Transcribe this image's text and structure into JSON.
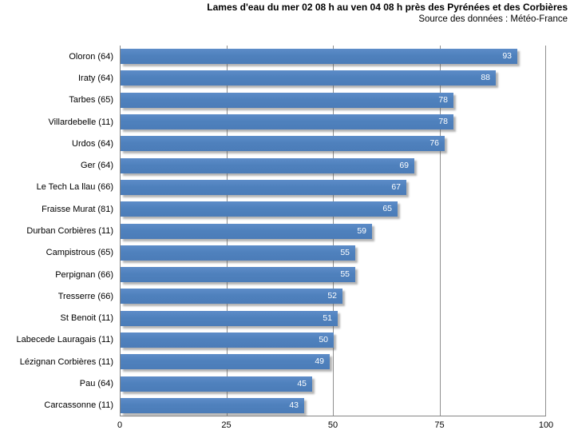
{
  "header": {
    "title": "Lames d'eau du mer 02 08 h au ven 04 08 h près des Pyrénées et des Corbières",
    "subtitle": "Source des données : Météo-France"
  },
  "chart_data": {
    "type": "bar",
    "orientation": "horizontal",
    "title": "Lames d'eau du mer 02 08 h au ven 04 08 h près des Pyrénées et des Corbières",
    "subtitle": "Source des données : Météo-France",
    "categories": [
      "Oloron (64)",
      "Iraty (64)",
      "Tarbes (65)",
      "Villardebelle (11)",
      "Urdos (64)",
      "Ger (64)",
      "Le Tech La llau (66)",
      "Fraisse Murat (81)",
      "Durban Corbières (11)",
      "Campistrous (65)",
      "Perpignan (66)",
      "Tresserre (66)",
      "St Benoit (11)",
      "Labecede Lauragais (11)",
      "Lézignan Corbières (11)",
      "Pau (64)",
      "Carcassonne (11)"
    ],
    "values": [
      93,
      88,
      78,
      78,
      76,
      69,
      67,
      65,
      59,
      55,
      55,
      52,
      51,
      50,
      49,
      45,
      43
    ],
    "xlabel": "",
    "ylabel": "",
    "xlim": [
      0,
      100
    ],
    "xticks": [
      0,
      25,
      50,
      75,
      100
    ],
    "grid": "vertical",
    "legend": "none",
    "bar_color": "#4f81bd",
    "value_label_color": "#ffffff",
    "gridline_color": "#8f8f8f",
    "axis_color": "#858585",
    "text_color": "#000000"
  }
}
